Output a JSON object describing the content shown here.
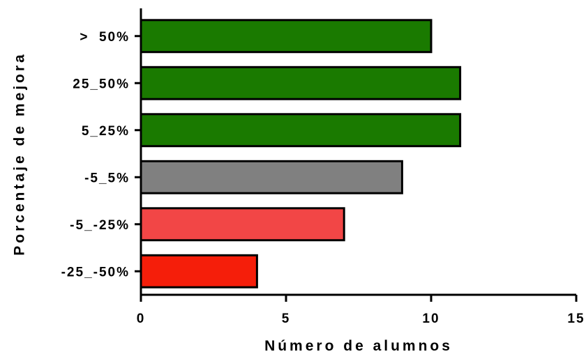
{
  "chart_data": {
    "type": "bar",
    "orientation": "horizontal",
    "title": "",
    "xlabel": "Número de alumnos",
    "ylabel": "Porcentaje de mejora",
    "categories": [
      ">  50%",
      "25_50%",
      "5_25%",
      "-5_5%",
      "-5_-25%",
      "-25_-50%"
    ],
    "values": [
      10,
      11,
      11,
      9,
      7,
      4
    ],
    "bar_colors": [
      "#1a7a00",
      "#1a7a00",
      "#1a7a00",
      "#808080",
      "#f24646",
      "#f51e0a"
    ],
    "xlim": [
      0,
      15
    ],
    "xticks": [
      0,
      5,
      10,
      15
    ],
    "grid": false,
    "legend": "none"
  }
}
